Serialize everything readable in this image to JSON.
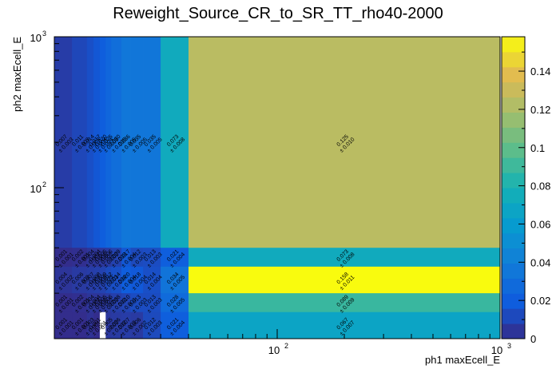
{
  "chart_data": {
    "type": "heatmap",
    "title": "Reweight_Source_CR_to_SR_TT_rho40-2000",
    "xlabel": "ph1 maxEcell_E",
    "ylabel": "ph2 maxEcell_E",
    "x_scale": "log",
    "y_scale": "log",
    "x_ticks": [
      {
        "value": 100,
        "label": "10",
        "exp": "2"
      },
      {
        "value": 1000,
        "label": "10",
        "exp": "3"
      }
    ],
    "y_ticks": [
      {
        "value": 100,
        "label": "10",
        "exp": "2"
      },
      {
        "value": 1000,
        "label": "10",
        "exp": "3"
      }
    ],
    "xlim": [
      10,
      1000
    ],
    "ylim": [
      10,
      1000
    ],
    "x_edges": [
      10,
      12,
      14,
      15,
      16,
      17,
      18,
      20,
      22,
      25,
      30,
      40,
      1000
    ],
    "y_edges": [
      10,
      15,
      20,
      30,
      40,
      1000
    ],
    "colorscale": {
      "min": 0,
      "max": 0.158,
      "ticks": [
        "0",
        "0.02",
        "0.04",
        "0.06",
        "0.08",
        "0.1",
        "0.12",
        "0.14"
      ],
      "tick_values": [
        0,
        0.02,
        0.04,
        0.06,
        0.08,
        0.1,
        0.12,
        0.14
      ]
    },
    "cells": [
      {
        "ix": 0,
        "iy": 4,
        "value": 0.007,
        "label": "0.007",
        "err": "± 0.003"
      },
      {
        "ix": 1,
        "iy": 4,
        "value": 0.011,
        "label": "0.011",
        "err": "± 0.003"
      },
      {
        "ix": 2,
        "iy": 4,
        "value": 0.014,
        "label": "0.014",
        "err": "± 0.003"
      },
      {
        "ix": 3,
        "iy": 4,
        "value": 0.017,
        "label": "0.017",
        "err": "± 0.004"
      },
      {
        "ix": 4,
        "iy": 4,
        "value": 0.02,
        "label": "0.020",
        "err": "± 0.004"
      },
      {
        "ix": 5,
        "iy": 4,
        "value": 0.025,
        "label": "0.025",
        "err": "± 0.005"
      },
      {
        "ix": 6,
        "iy": 4,
        "value": 0.03,
        "label": "0.030",
        "err": "± 0.005"
      },
      {
        "ix": 7,
        "iy": 4,
        "value": 0.036,
        "label": "0.036",
        "err": "± 0.005"
      },
      {
        "ix": 8,
        "iy": 4,
        "value": 0.035,
        "label": "0.035",
        "err": "± 0.005"
      },
      {
        "ix": 9,
        "iy": 4,
        "value": 0.035,
        "label": "0.035",
        "err": "± 0.005"
      },
      {
        "ix": 10,
        "iy": 4,
        "value": 0.073,
        "label": "0.073",
        "err": "± 0.008"
      },
      {
        "ix": 11,
        "iy": 4,
        "value": 0.125,
        "label": "0.125",
        "err": "± 0.010"
      },
      {
        "ix": 0,
        "iy": 3,
        "value": 0.001,
        "label": "0.001",
        "err": "± 0.001"
      },
      {
        "ix": 1,
        "iy": 3,
        "value": 0.002,
        "label": "0.002",
        "err": "± 0.001"
      },
      {
        "ix": 2,
        "iy": 3,
        "value": 0.004,
        "label": "0.004",
        "err": "± 0.002"
      },
      {
        "ix": 3,
        "iy": 3,
        "value": 0.004,
        "label": "0.004",
        "err": "± 0.002"
      },
      {
        "ix": 4,
        "iy": 3,
        "value": 0.005,
        "label": "0.005",
        "err": "± 0.002"
      },
      {
        "ix": 5,
        "iy": 3,
        "value": 0.006,
        "label": "0.006",
        "err": "± 0.002"
      },
      {
        "ix": 6,
        "iy": 3,
        "value": 0.009,
        "label": "0.009",
        "err": "± 0.003"
      },
      {
        "ix": 7,
        "iy": 3,
        "value": 0.017,
        "label": "0.017",
        "err": "± 0.004"
      },
      {
        "ix": 8,
        "iy": 3,
        "value": 0.012,
        "label": "0.012",
        "err": "± 0.003"
      },
      {
        "ix": 9,
        "iy": 3,
        "value": 0.013,
        "label": "0.013",
        "err": "± 0.003"
      },
      {
        "ix": 10,
        "iy": 3,
        "value": 0.021,
        "label": "0.021",
        "err": "± 0.004"
      },
      {
        "ix": 11,
        "iy": 3,
        "value": 0.073,
        "label": "0.073",
        "err": "± 0.008"
      },
      {
        "ix": 0,
        "iy": 2,
        "value": 0.004,
        "label": "0.004",
        "err": "± 0.002"
      },
      {
        "ix": 1,
        "iy": 2,
        "value": 0.006,
        "label": "0.006",
        "err": "± 0.002"
      },
      {
        "ix": 2,
        "iy": 2,
        "value": 0.007,
        "label": "0.007",
        "err": "± 0.003"
      },
      {
        "ix": 3,
        "iy": 2,
        "value": 0.008,
        "label": "0.008",
        "err": "± 0.003"
      },
      {
        "ix": 4,
        "iy": 2,
        "value": 0.009,
        "label": "0.009",
        "err": "± 0.003"
      },
      {
        "ix": 5,
        "iy": 2,
        "value": 0.012,
        "label": "0.012",
        "err": "± 0.003"
      },
      {
        "ix": 6,
        "iy": 2,
        "value": 0.014,
        "label": "0.014",
        "err": "± 0.004"
      },
      {
        "ix": 7,
        "iy": 2,
        "value": 0.02,
        "label": "0.020",
        "err": "± 0.004"
      },
      {
        "ix": 8,
        "iy": 2,
        "value": 0.018,
        "label": "0.018",
        "err": "± 0.004"
      },
      {
        "ix": 9,
        "iy": 2,
        "value": 0.014,
        "label": "0.014",
        "err": "± 0.004"
      },
      {
        "ix": 10,
        "iy": 2,
        "value": 0.034,
        "label": "0.034",
        "err": "± 0.005"
      },
      {
        "ix": 11,
        "iy": 2,
        "value": 0.158,
        "label": "0.158",
        "err": "± 0.011"
      },
      {
        "ix": 0,
        "iy": 1,
        "value": 0.001,
        "label": "0.001",
        "err": "± 0.001"
      },
      {
        "ix": 1,
        "iy": 1,
        "value": 0.002,
        "label": "0.002",
        "err": "± 0.001"
      },
      {
        "ix": 2,
        "iy": 1,
        "value": 0.004,
        "label": "0.004",
        "err": "± 0.002"
      },
      {
        "ix": 3,
        "iy": 1,
        "value": 0.004,
        "label": "0.004",
        "err": "± 0.002"
      },
      {
        "ix": 4,
        "iy": 1,
        "value": 0.005,
        "label": "0.005",
        "err": "± 0.002"
      },
      {
        "ix": 5,
        "iy": 1,
        "value": 0.006,
        "label": "0.006",
        "err": "± 0.002"
      },
      {
        "ix": 6,
        "iy": 1,
        "value": 0.008,
        "label": "0.008",
        "err": "± 0.002"
      },
      {
        "ix": 7,
        "iy": 1,
        "value": 0.01,
        "label": "0.010",
        "err": "± 0.003"
      },
      {
        "ix": 8,
        "iy": 1,
        "value": 0.013,
        "label": "0.013",
        "err": "± 0.003"
      },
      {
        "ix": 9,
        "iy": 1,
        "value": 0.013,
        "label": "0.013",
        "err": "± 0.003"
      },
      {
        "ix": 10,
        "iy": 1,
        "value": 0.028,
        "label": "0.028",
        "err": "± 0.005"
      },
      {
        "ix": 11,
        "iy": 1,
        "value": 0.089,
        "label": "0.089",
        "err": "± 0.009"
      },
      {
        "ix": 0,
        "iy": 0,
        "value": 0.001,
        "label": "0.001",
        "err": "± 0.001"
      },
      {
        "ix": 1,
        "iy": 0,
        "value": 0.001,
        "label": "0.001",
        "err": "± 0.001"
      },
      {
        "ix": 2,
        "iy": 0,
        "value": 0.003,
        "label": "0.003",
        "err": "± 0.001"
      },
      {
        "ix": 3,
        "iy": 0,
        "value": 0.001,
        "label": "0.001",
        "err": "± 0.001"
      },
      {
        "ix": 4,
        "iy": 0,
        "value": 0,
        "label": "",
        "err": ""
      },
      {
        "ix": 5,
        "iy": 0,
        "value": 0.005,
        "label": "0.005",
        "err": "± 0.002"
      },
      {
        "ix": 6,
        "iy": 0,
        "value": 0.006,
        "label": "0.006",
        "err": "± 0.002"
      },
      {
        "ix": 7,
        "iy": 0,
        "value": 0.007,
        "label": "0.007",
        "err": "± 0.002"
      },
      {
        "ix": 8,
        "iy": 0,
        "value": 0.006,
        "label": "0.006",
        "err": "± 0.002"
      },
      {
        "ix": 9,
        "iy": 0,
        "value": 0.012,
        "label": "0.012",
        "err": "± 0.003"
      },
      {
        "ix": 10,
        "iy": 0,
        "value": 0.021,
        "label": "0.021",
        "err": "± 0.004"
      },
      {
        "ix": 11,
        "iy": 0,
        "value": 0.067,
        "label": "0.067",
        "err": "± 0.007"
      }
    ]
  }
}
